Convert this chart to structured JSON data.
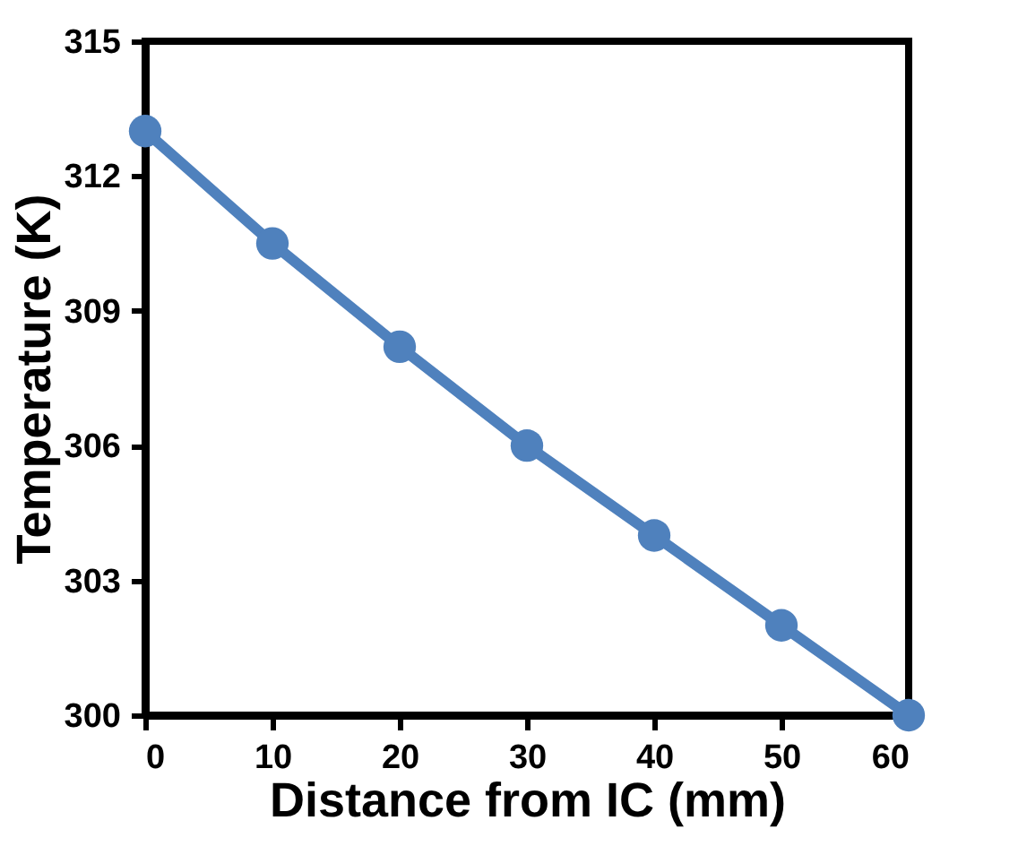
{
  "chart_data": {
    "type": "line",
    "xlabel": "Distance from IC (mm)",
    "ylabel": "Temperature (K)",
    "x": [
      0,
      10,
      20,
      30,
      40,
      50,
      60
    ],
    "series": [
      {
        "color": "#4f81bd",
        "values": [
          313,
          310.5,
          308.2,
          306,
          304,
          302,
          300
        ]
      }
    ],
    "xlim": [
      0,
      60
    ],
    "xticks": [
      0,
      10,
      20,
      30,
      40,
      50,
      60
    ],
    "ylim": [
      300,
      315
    ],
    "yticks": [
      300,
      303,
      306,
      309,
      312,
      315
    ],
    "marker": "circle",
    "line_style": "solid",
    "grid": false,
    "legend": false
  }
}
